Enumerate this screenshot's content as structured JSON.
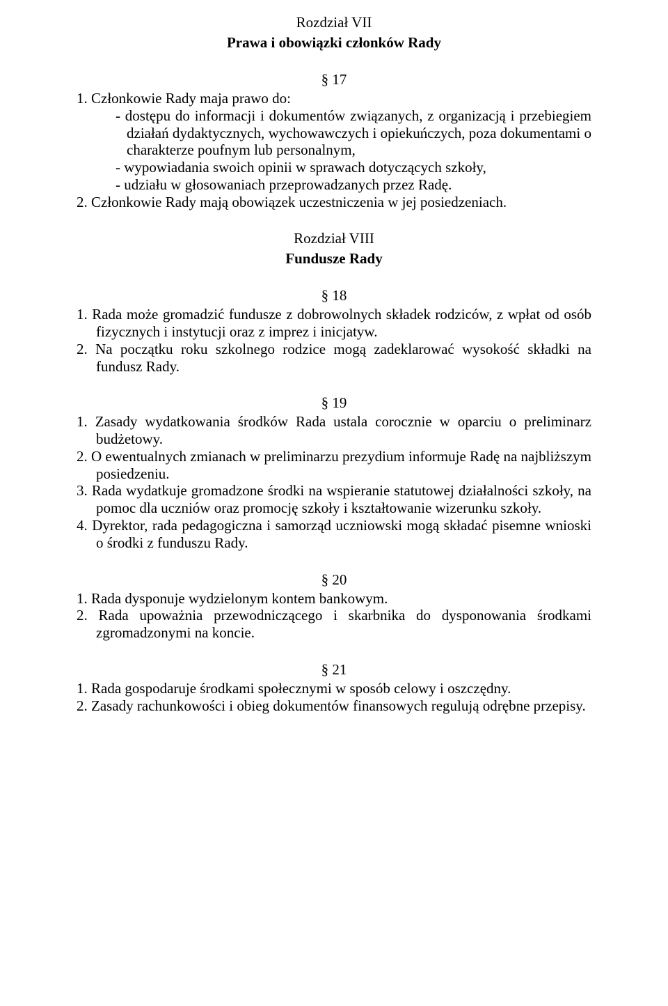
{
  "chapter7": {
    "heading": "Rozdział VII",
    "title": "Prawa i obowiązki członków Rady"
  },
  "s17": {
    "num": "§ 17",
    "li1_num": "1.",
    "li1_intro": "Członkowie Rady maja prawo do:",
    "li1_dash1": "- dostępu do informacji i dokumentów związanych,  z organizacją i przebiegiem działań dydaktycznych, wychowawczych i opiekuńczych, poza dokumentami o charakterze poufnym lub personalnym,",
    "li1_dash2": "- wypowiadania swoich opinii w sprawach dotyczących szkoły,",
    "li1_dash3": "- udziału w głosowaniach przeprowadzanych przez Radę.",
    "li2_num": "2.",
    "li2": "Członkowie Rady mają obowiązek uczestniczenia w jej posiedzeniach."
  },
  "chapter8": {
    "heading": "Rozdział VIII",
    "title": "Fundusze Rady"
  },
  "s18": {
    "num": "§ 18",
    "li1_num": "1.",
    "li1": "Rada może gromadzić fundusze z dobrowolnych składek rodziców, z wpłat od osób fizycznych i instytucji oraz z imprez i inicjatyw.",
    "li2_num": "2.",
    "li2": "Na początku roku szkolnego rodzice mogą zadeklarować wysokość składki na fundusz Rady."
  },
  "s19": {
    "num": "§ 19",
    "li1_num": "1.",
    "li1": "Zasady wydatkowania środków Rada ustala corocznie w oparciu o preliminarz budżetowy.",
    "li2_num": "2.",
    "li2": "O ewentualnych zmianach w preliminarzu prezydium informuje Radę na najbliższym posiedzeniu.",
    "li3_num": "3.",
    "li3": "Rada wydatkuje gromadzone środki na wspieranie statutowej działalności szkoły, na pomoc dla uczniów oraz promocję szkoły i kształtowanie wizerunku szkoły.",
    "li4_num": "4.",
    "li4": "Dyrektor, rada pedagogiczna i samorząd uczniowski mogą składać pisemne wnioski o środki z funduszu Rady."
  },
  "s20": {
    "num": "§ 20",
    "li1_num": "1.",
    "li1": "Rada dysponuje wydzielonym kontem bankowym.",
    "li2_num": "2.",
    "li2": "Rada upoważnia przewodniczącego i skarbnika do dysponowania środkami zgromadzonymi na koncie."
  },
  "s21": {
    "num": "§ 21",
    "li1_num": "1.",
    "li1": "Rada gospodaruje środkami społecznymi w sposób celowy i oszczędny.",
    "li2_num": "2.",
    "li2": "Zasady rachunkowości i obieg dokumentów finansowych regulują odrębne przepisy."
  }
}
